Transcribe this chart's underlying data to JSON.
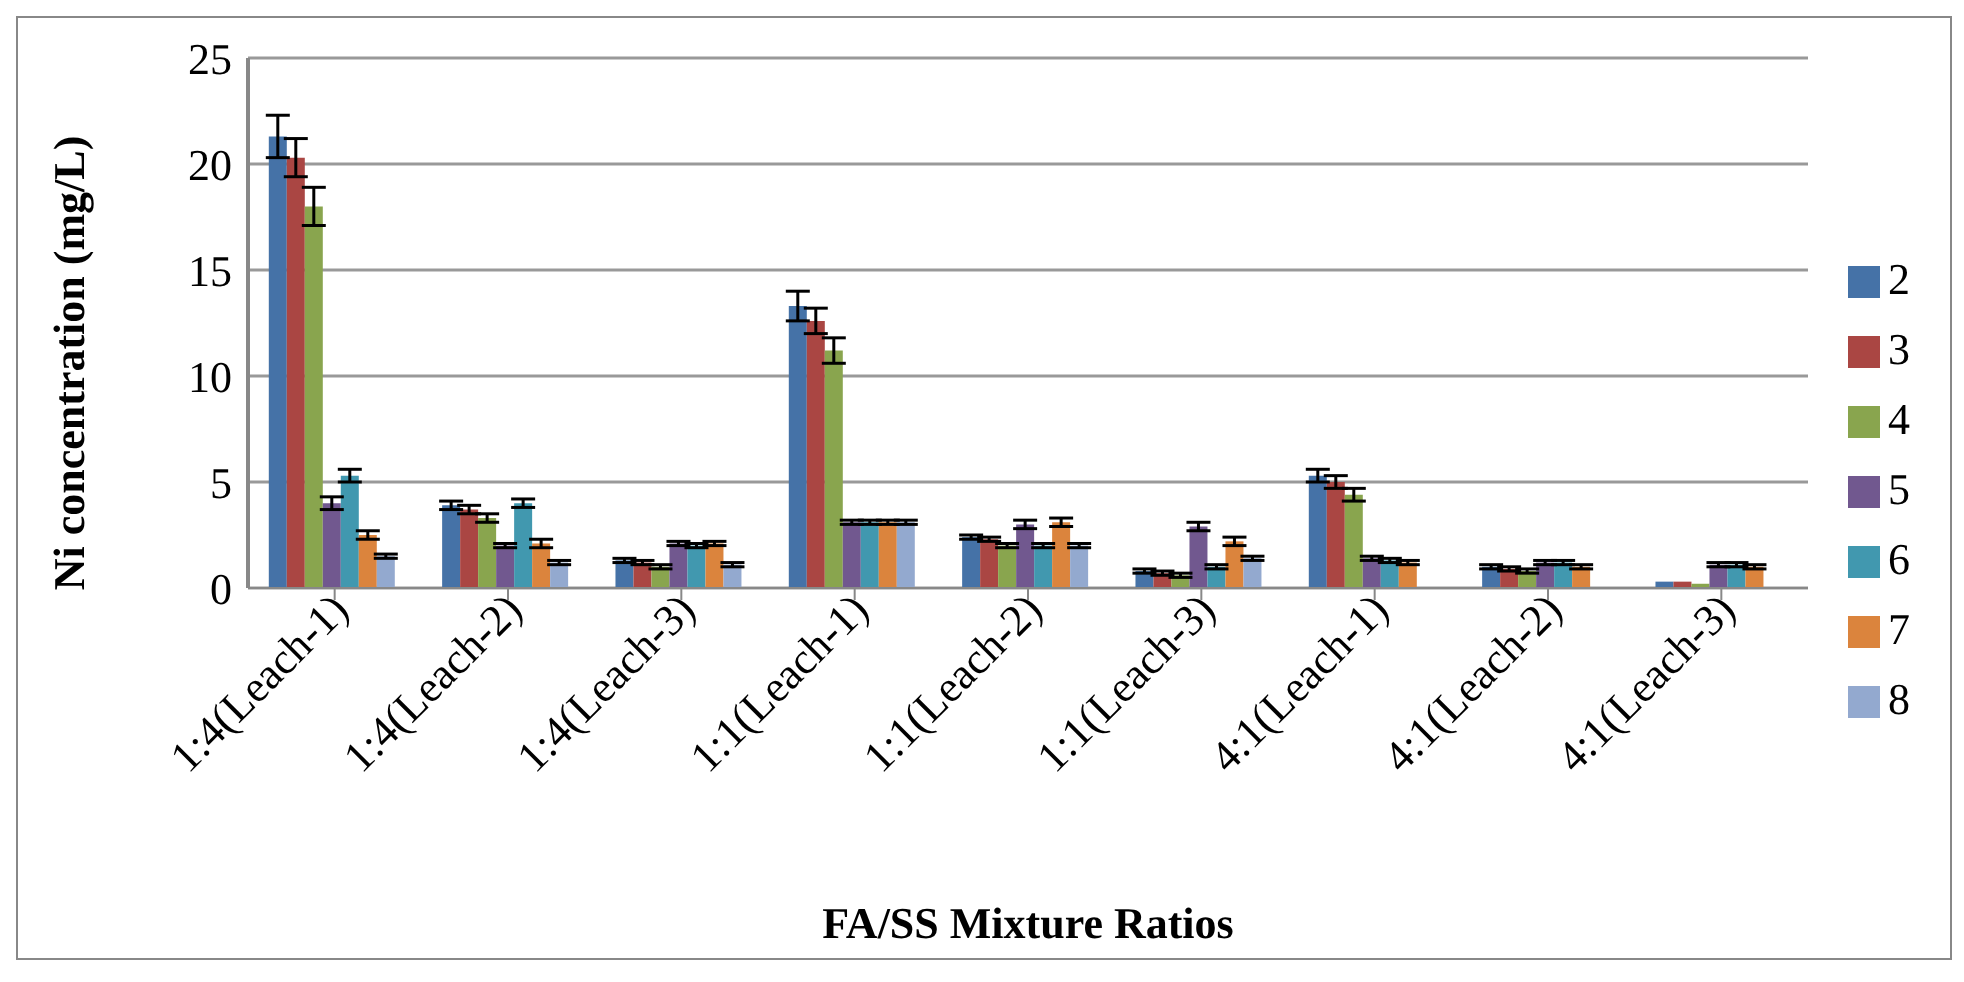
{
  "chart_data": {
    "type": "bar",
    "xlabel": "FA/SS Mixture Ratios",
    "ylabel": "Ni  concentration (mg/L)",
    "categories": [
      "1:4(Leach-1)",
      "1:4(Leach-2)",
      "1:4(Leach-3)",
      "1:1(Leach-1)",
      "1:1(Leach-2)",
      "1:1(Leach-3)",
      "4:1(Leach-1)",
      "4:1(Leach-2)",
      "4:1(Leach-3)"
    ],
    "series": [
      {
        "name": "2",
        "color": "#4572a7",
        "values": [
          21.3,
          3.9,
          1.3,
          13.3,
          2.4,
          0.8,
          5.3,
          1.0,
          0.3
        ],
        "errors": [
          1.0,
          0.2,
          0.1,
          0.7,
          0.1,
          0.1,
          0.3,
          0.1,
          null
        ]
      },
      {
        "name": "3",
        "color": "#aa4643",
        "values": [
          20.3,
          3.7,
          1.2,
          12.6,
          2.3,
          0.7,
          5.0,
          0.9,
          0.3
        ],
        "errors": [
          0.9,
          0.2,
          0.1,
          0.6,
          0.1,
          0.1,
          0.3,
          0.1,
          null
        ]
      },
      {
        "name": "4",
        "color": "#89a54e",
        "values": [
          18.0,
          3.3,
          1.0,
          11.2,
          2.0,
          0.6,
          4.4,
          0.8,
          0.2
        ],
        "errors": [
          0.9,
          0.2,
          0.1,
          0.6,
          0.1,
          0.1,
          0.3,
          0.1,
          null
        ]
      },
      {
        "name": "5",
        "color": "#71588f",
        "values": [
          4.0,
          2.0,
          2.1,
          3.1,
          3.0,
          2.9,
          1.4,
          1.2,
          1.1
        ],
        "errors": [
          0.3,
          0.1,
          0.1,
          0.1,
          0.2,
          0.2,
          0.1,
          0.1,
          0.1
        ]
      },
      {
        "name": "6",
        "color": "#4198af",
        "values": [
          5.3,
          4.0,
          2.0,
          3.1,
          2.0,
          1.0,
          1.3,
          1.2,
          1.1
        ],
        "errors": [
          0.3,
          0.2,
          0.1,
          0.1,
          0.1,
          0.1,
          0.1,
          0.1,
          0.1
        ]
      },
      {
        "name": "7",
        "color": "#db843d",
        "values": [
          2.5,
          2.1,
          2.1,
          3.1,
          3.1,
          2.2,
          1.2,
          1.0,
          1.0
        ],
        "errors": [
          0.2,
          0.2,
          0.1,
          0.1,
          0.2,
          0.2,
          0.1,
          0.1,
          0.1
        ]
      },
      {
        "name": "8",
        "color": "#93a9cf",
        "values": [
          1.5,
          1.2,
          1.1,
          3.1,
          2.0,
          1.4,
          null,
          null,
          null
        ],
        "errors": [
          0.1,
          0.1,
          0.1,
          0.1,
          0.1,
          0.1,
          null,
          null,
          null
        ]
      }
    ],
    "ylim": [
      0,
      25
    ],
    "yticks": [
      0,
      5,
      10,
      15,
      20,
      25
    ],
    "grid": "y",
    "legend": "right"
  }
}
